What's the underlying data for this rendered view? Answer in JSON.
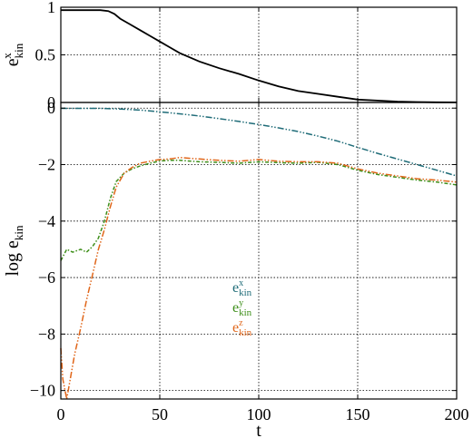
{
  "colors": {
    "ex": "#1f6c78",
    "ey": "#3e8f1a",
    "ez": "#e0661a",
    "top": "#000000"
  },
  "chart_data": [
    {
      "type": "line",
      "ylabel": "e",
      "ylabel_sub": "kin",
      "ylabel_sup": "x",
      "xlim": [
        0,
        200
      ],
      "ylim": [
        0,
        1
      ],
      "xticks": [
        0,
        50,
        100,
        150,
        200
      ],
      "yticks": [
        0,
        0.5,
        1
      ],
      "ytick_labels": [
        "0",
        "0.5",
        "1"
      ],
      "grid": true,
      "series": [
        {
          "color": "#000000",
          "x": [
            0,
            10,
            20,
            24,
            27,
            30,
            35,
            40,
            45,
            50,
            55,
            60,
            70,
            80,
            90,
            100,
            110,
            120,
            130,
            140,
            150,
            160,
            170,
            180,
            190,
            200
          ],
          "y": [
            0.97,
            0.97,
            0.97,
            0.96,
            0.93,
            0.88,
            0.82,
            0.76,
            0.7,
            0.64,
            0.58,
            0.52,
            0.43,
            0.36,
            0.3,
            0.23,
            0.17,
            0.12,
            0.09,
            0.06,
            0.03,
            0.02,
            0.01,
            0.005,
            0.002,
            0.001
          ]
        }
      ]
    },
    {
      "type": "line",
      "xlabel": "t",
      "ylabel": "log e",
      "ylabel_sub": "kin",
      "xlim": [
        0,
        200
      ],
      "ylim": [
        -10.3,
        0.2
      ],
      "xticks": [
        0,
        50,
        100,
        150,
        200
      ],
      "yticks": [
        0,
        -2,
        -4,
        -6,
        -8,
        -10
      ],
      "ytick_labels": [
        "0",
        "−2",
        "−4",
        "−6",
        "−8",
        "−10"
      ],
      "grid": true,
      "legend": [
        {
          "label": "e",
          "sub": "kin",
          "sup": "x",
          "color": "#1f6c78"
        },
        {
          "label": "e",
          "sub": "kin",
          "sup": "y",
          "color": "#3e8f1a"
        },
        {
          "label": "e",
          "sub": "kin",
          "sup": "z",
          "color": "#e0661a"
        }
      ],
      "legend_position": "center",
      "series": [
        {
          "key": "ex",
          "color": "#1f6c78",
          "x": [
            0,
            20,
            30,
            40,
            50,
            60,
            70,
            80,
            90,
            100,
            110,
            120,
            130,
            140,
            150,
            160,
            170,
            180,
            190,
            200
          ],
          "y": [
            -0.01,
            -0.01,
            -0.03,
            -0.07,
            -0.13,
            -0.2,
            -0.28,
            -0.37,
            -0.47,
            -0.58,
            -0.7,
            -0.83,
            -0.99,
            -1.17,
            -1.39,
            -1.6,
            -1.8,
            -2.0,
            -2.2,
            -2.4
          ]
        },
        {
          "key": "ey",
          "color": "#3e8f1a",
          "x": [
            0,
            3,
            6,
            10,
            13,
            16,
            19,
            22,
            25,
            28,
            32,
            36,
            40,
            45,
            50,
            55,
            60,
            70,
            80,
            90,
            100,
            110,
            120,
            130,
            140,
            150,
            160,
            170,
            180,
            190,
            200
          ],
          "y": [
            -5.4,
            -5.0,
            -5.1,
            -5.0,
            -5.1,
            -4.9,
            -4.6,
            -4.0,
            -3.2,
            -2.6,
            -2.3,
            -2.15,
            -2.05,
            -1.95,
            -1.87,
            -1.85,
            -1.85,
            -1.9,
            -1.92,
            -1.95,
            -1.9,
            -1.93,
            -1.95,
            -1.92,
            -2.0,
            -2.2,
            -2.35,
            -2.45,
            -2.55,
            -2.62,
            -2.72
          ]
        },
        {
          "key": "ez",
          "color": "#e0661a",
          "x": [
            0,
            1,
            3,
            5,
            7,
            10,
            13,
            16,
            19,
            22,
            25,
            28,
            32,
            36,
            40,
            45,
            50,
            55,
            60,
            70,
            80,
            90,
            100,
            110,
            120,
            130,
            140,
            150,
            160,
            170,
            180,
            190,
            200
          ],
          "y": [
            -8.5,
            -9.6,
            -10.3,
            -9.5,
            -8.7,
            -7.8,
            -6.8,
            -5.9,
            -5.0,
            -4.3,
            -3.5,
            -2.8,
            -2.3,
            -2.1,
            -1.95,
            -1.88,
            -1.82,
            -1.8,
            -1.75,
            -1.8,
            -1.85,
            -1.88,
            -1.82,
            -1.88,
            -1.9,
            -1.9,
            -1.95,
            -2.15,
            -2.3,
            -2.4,
            -2.5,
            -2.55,
            -2.62
          ]
        }
      ]
    }
  ]
}
